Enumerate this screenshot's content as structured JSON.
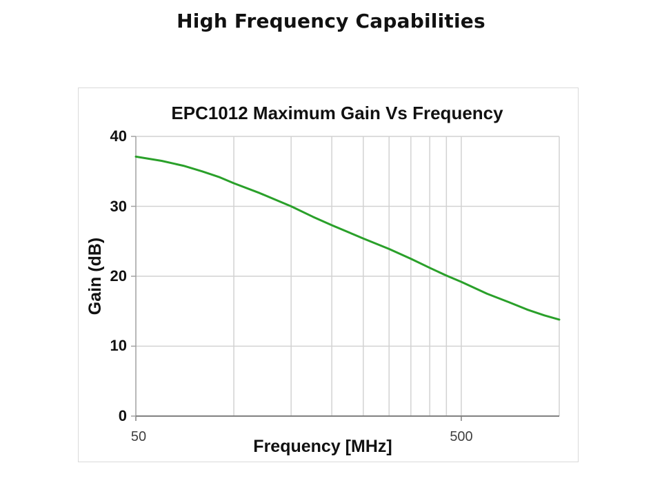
{
  "page": {
    "title": "High Frequency Capabilities"
  },
  "colors": {
    "curve": "#2aa02a",
    "gridline": "#d2d2d2",
    "axis_x": "#808080",
    "axis_y": "#a0a0a0",
    "panel_border": "#d9d9d9",
    "tick_label_x": "#3f3f3f",
    "text": "#111111"
  },
  "chart_data": {
    "type": "line",
    "title": "EPC1012 Maximum Gain Vs Frequency",
    "xlabel": "Frequency [MHz]",
    "ylabel": "Gain (dB)",
    "xscale": "log",
    "xlim": [
      50,
      1000
    ],
    "ylim": [
      0,
      40
    ],
    "grid": true,
    "legend": false,
    "x_tick_values": [
      50,
      500
    ],
    "x_tick_labels": [
      "50",
      "500"
    ],
    "y_tick_values": [
      40,
      30,
      20,
      10,
      0
    ],
    "y_tick_labels": [
      "40",
      "30",
      "20",
      "10",
      "0"
    ],
    "x_gridlines": [
      100,
      150,
      200,
      250,
      300,
      350,
      400,
      450,
      500
    ],
    "y_gridlines": [
      10,
      20,
      30
    ],
    "series": [
      {
        "name": "Maximum Gain",
        "color": "#2aa02a",
        "x": [
          50,
          60,
          70,
          80,
          90,
          100,
          120,
          150,
          175,
          200,
          250,
          300,
          350,
          400,
          450,
          500,
          600,
          700,
          800,
          900,
          1000
        ],
        "y": [
          37.1,
          36.5,
          35.8,
          35.0,
          34.2,
          33.3,
          31.9,
          30.0,
          28.5,
          27.3,
          25.4,
          23.9,
          22.5,
          21.2,
          20.1,
          19.2,
          17.5,
          16.3,
          15.2,
          14.4,
          13.8
        ]
      }
    ]
  }
}
